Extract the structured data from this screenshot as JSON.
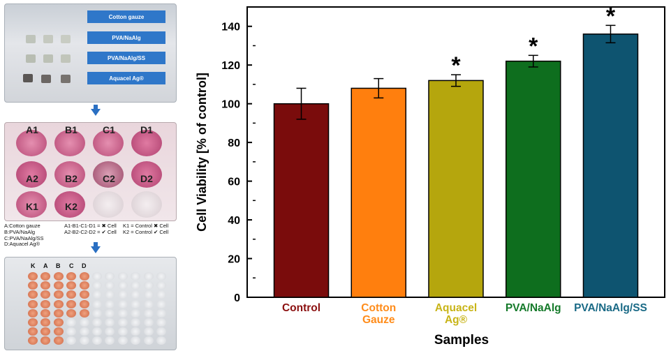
{
  "figure": {
    "top_labels": [
      "Cotton gauze",
      "PVA/NaAlg",
      "PVA/NaAlg/SS",
      "Aquacel Ag®"
    ],
    "plate_labels": {
      "row1": [
        "A1",
        "B1",
        "C1",
        "D1"
      ],
      "row2": [
        "A2",
        "B2",
        "C2",
        "D2"
      ],
      "row3": [
        "K1",
        "K2"
      ]
    },
    "legend": [
      [
        "A:Cotton gauze",
        "A1-B1-C1-D1 = ✖ Cell",
        "K1 = Control ✖ Cell"
      ],
      [
        "B:PVA/NaAlg",
        "A2-B2-C2-D2 = ✔ Cell",
        "K2 = Control ✔ Cell"
      ],
      [
        "C:PVA/NaAlg/SS",
        "",
        ""
      ],
      [
        "D:Aquacel Ag®",
        "",
        ""
      ]
    ],
    "plate96_labels": [
      "K",
      "A",
      "B",
      "C",
      "D"
    ]
  },
  "chart_data": {
    "type": "bar",
    "xlabel": "Samples",
    "ylabel": "Cell Viability [% of control]",
    "ylim": [
      0,
      150
    ],
    "yticks": [
      0,
      20,
      40,
      60,
      80,
      100,
      120,
      140
    ],
    "categories": [
      {
        "lines": [
          "Control"
        ],
        "color": "#7a0c0c"
      },
      {
        "lines": [
          "Cotton",
          "Gauze"
        ],
        "color": "#ff7f0e"
      },
      {
        "lines": [
          "Aquacel",
          "Ag®"
        ],
        "color": "#b5a60d"
      },
      {
        "lines": [
          "PVA/NaAlg"
        ],
        "color": "#0e6e1e"
      },
      {
        "lines": [
          "PVA/NaAlg/SS"
        ],
        "color": "#0e5470"
      }
    ],
    "label_colors": [
      "#8b1010",
      "#ff8c1a",
      "#c8b417",
      "#157a2a",
      "#1a6a86"
    ],
    "values": [
      100,
      108,
      112,
      122,
      136
    ],
    "errors": [
      8,
      5,
      3,
      3,
      4.5
    ],
    "significance": [
      "",
      "",
      "*",
      "*",
      "*"
    ]
  }
}
